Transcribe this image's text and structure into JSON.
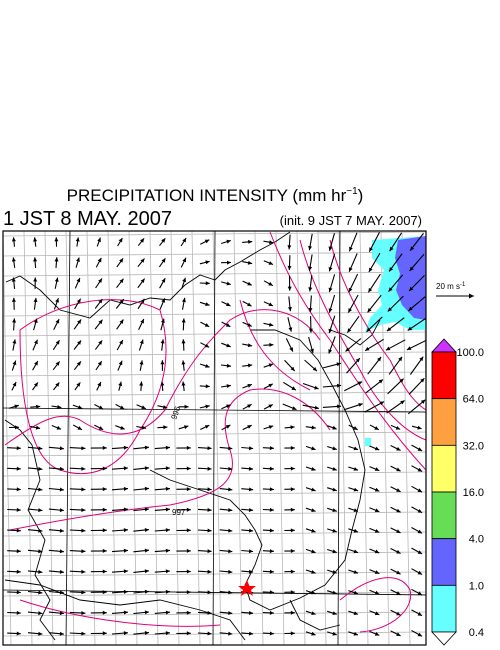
{
  "header": {
    "title": {
      "main": "PRECIPITATION INTENSITY (mm hr",
      "exponent": "−1",
      "close": ")"
    },
    "valid_time": "1 JST 8 MAY. 2007",
    "init_time": "(init. 9 JST 7 MAY. 2007)"
  },
  "map": {
    "contour_labels": [
      "996",
      "997"
    ]
  },
  "reference_vector": {
    "label": "20 m s",
    "exponent": "-1"
  },
  "colorbar": {
    "levels": [
      "100.0",
      "64.0",
      "32.0",
      "16.0",
      "4.0",
      "1.0",
      "0.4"
    ]
  }
}
